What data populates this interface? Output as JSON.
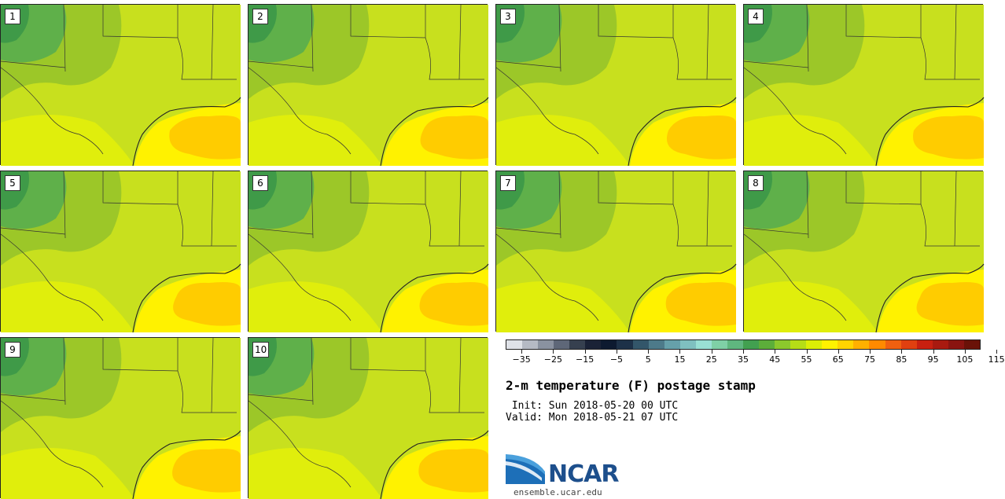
{
  "panels": [
    {
      "label": "1"
    },
    {
      "label": "2"
    },
    {
      "label": "3"
    },
    {
      "label": "4"
    },
    {
      "label": "5"
    },
    {
      "label": "6"
    },
    {
      "label": "7"
    },
    {
      "label": "8"
    },
    {
      "label": "9"
    },
    {
      "label": "10"
    }
  ],
  "colorbar": {
    "colors": [
      "#dfe2e8",
      "#b5bac4",
      "#8a92a0",
      "#5e6778",
      "#36404f",
      "#1a2236",
      "#0d1a30",
      "#1d3148",
      "#33566a",
      "#4d7a8a",
      "#66a0aa",
      "#7fc0c0",
      "#99e0d4",
      "#7fd0a6",
      "#5fb77f",
      "#42a050",
      "#5cae3a",
      "#8cc82c",
      "#b6dd16",
      "#dcee05",
      "#fff200",
      "#ffd400",
      "#ffb000",
      "#ff8a00",
      "#f06010",
      "#e04010",
      "#c82010",
      "#a81a10",
      "#8a1410",
      "#6a1208"
    ],
    "tick_labels": [
      "−35",
      "−25",
      "−15",
      "−5",
      "5",
      "15",
      "25",
      "35",
      "45",
      "55",
      "65",
      "75",
      "85",
      "95",
      "105",
      "115"
    ]
  },
  "title": "2-m temperature (F) postage stamp",
  "init": " Init: Sun 2018-05-20 00 UTC",
  "valid": "Valid: Mon 2018-05-21 07 UTC",
  "logo_text": "NCAR",
  "url": "ensemble.ucar.edu"
}
